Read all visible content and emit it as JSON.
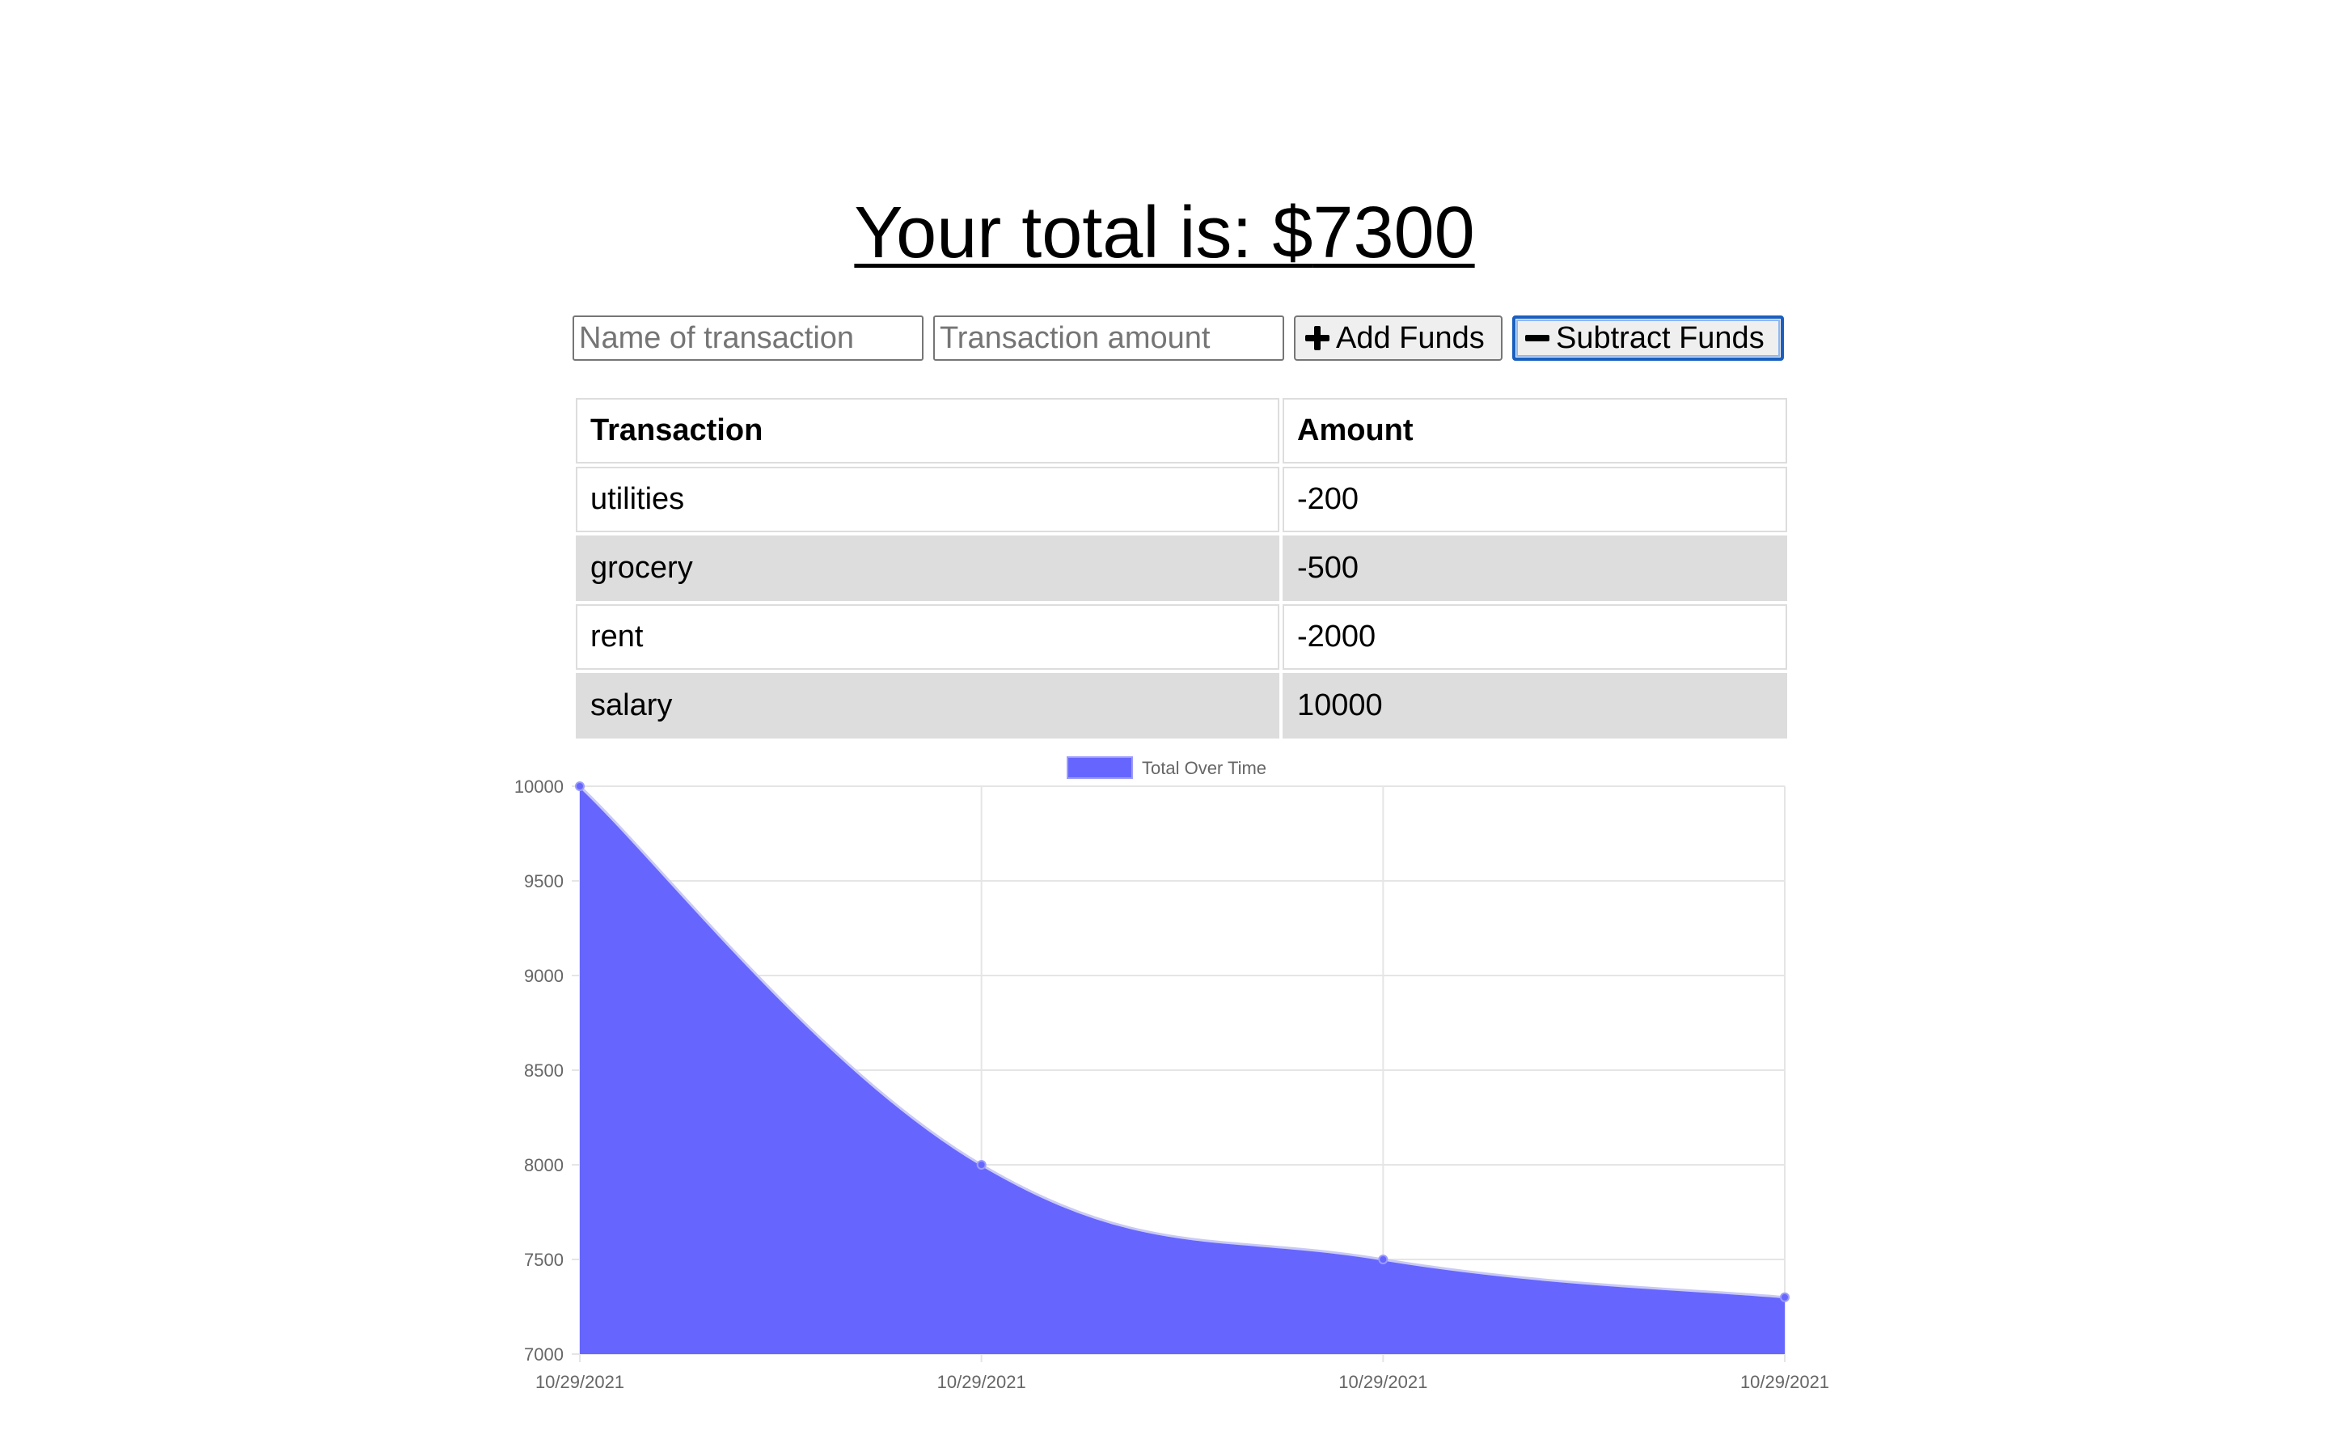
{
  "header": {
    "total_label": "Your total is: $",
    "total_value": "7300"
  },
  "form": {
    "name_placeholder": "Name of transaction",
    "amount_placeholder": "Transaction amount",
    "add_label": "Add Funds",
    "subtract_label": "Subtract Funds"
  },
  "table": {
    "headers": [
      "Transaction",
      "Amount"
    ],
    "rows": [
      {
        "name": "utilities",
        "amount": "-200"
      },
      {
        "name": "grocery",
        "amount": "-500"
      },
      {
        "name": "rent",
        "amount": "-2000"
      },
      {
        "name": "salary",
        "amount": "10000"
      }
    ]
  },
  "chart_data": {
    "type": "area",
    "x": [
      "10/29/2021",
      "10/29/2021",
      "10/29/2021",
      "10/29/2021"
    ],
    "series": [
      {
        "name": "Total Over Time",
        "values": [
          10000,
          8000,
          7500,
          7300
        ],
        "color": "#6666ff"
      }
    ],
    "ylim": [
      7000,
      10000
    ],
    "yticks": [
      7000,
      7500,
      8000,
      8500,
      9000,
      9500,
      10000
    ],
    "grid": true,
    "legend": "top-center",
    "title": "",
    "xlabel": "",
    "ylabel": ""
  }
}
